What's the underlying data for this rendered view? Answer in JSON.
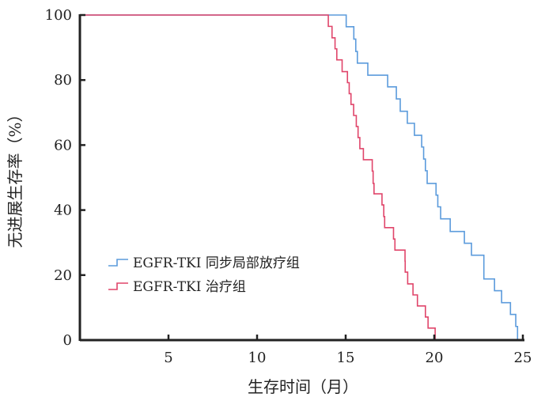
{
  "chart_data": {
    "type": "line",
    "subtype": "kaplan-meier-step",
    "xlabel": "生存时间（月）",
    "ylabel": "无进展生存率（%）",
    "xlim": [
      0,
      25
    ],
    "ylim": [
      0,
      100
    ],
    "xticks": [
      5,
      10,
      15,
      20,
      25
    ],
    "yticks": [
      0,
      20,
      40,
      60,
      80,
      100
    ],
    "grid": false,
    "legend_position": "bottom-left",
    "series": [
      {
        "name": "EGFR-TKI 同步局部放疗组",
        "color": "#5b9bdc",
        "points": [
          [
            0,
            100
          ],
          [
            15.03,
            96.4
          ],
          [
            15.46,
            92.6
          ],
          [
            15.57,
            88.8
          ],
          [
            15.66,
            85.2
          ],
          [
            16.25,
            81.5
          ],
          [
            17.37,
            77.9
          ],
          [
            17.86,
            74.2
          ],
          [
            18.08,
            70.4
          ],
          [
            18.48,
            66.7
          ],
          [
            18.88,
            63.0
          ],
          [
            19.29,
            59.4
          ],
          [
            19.4,
            55.7
          ],
          [
            19.5,
            52.1
          ],
          [
            19.6,
            48.2
          ],
          [
            20.1,
            44.6
          ],
          [
            20.2,
            41.0
          ],
          [
            20.36,
            37.3
          ],
          [
            20.9,
            33.4
          ],
          [
            21.7,
            29.8
          ],
          [
            22.1,
            26.1
          ],
          [
            22.8,
            18.8
          ],
          [
            23.4,
            15.2
          ],
          [
            23.8,
            11.5
          ],
          [
            24.3,
            7.9
          ],
          [
            24.6,
            4.2
          ],
          [
            24.7,
            0
          ]
        ]
      },
      {
        "name": "EGFR-TKI 治疗组",
        "color": "#e0456a",
        "points": [
          [
            0,
            100
          ],
          [
            14.02,
            96.5
          ],
          [
            14.23,
            93.0
          ],
          [
            14.4,
            89.6
          ],
          [
            14.5,
            86.2
          ],
          [
            14.8,
            82.6
          ],
          [
            15.1,
            79.2
          ],
          [
            15.2,
            75.8
          ],
          [
            15.3,
            72.5
          ],
          [
            15.45,
            69.1
          ],
          [
            15.6,
            65.7
          ],
          [
            15.7,
            62.3
          ],
          [
            15.8,
            58.9
          ],
          [
            16.0,
            55.5
          ],
          [
            16.5,
            52.0
          ],
          [
            16.55,
            48.2
          ],
          [
            16.6,
            45.0
          ],
          [
            17.05,
            41.6
          ],
          [
            17.15,
            38.0
          ],
          [
            17.2,
            34.6
          ],
          [
            17.7,
            31.1
          ],
          [
            17.78,
            27.7
          ],
          [
            18.35,
            24.3
          ],
          [
            18.36,
            20.9
          ],
          [
            18.5,
            17.3
          ],
          [
            18.8,
            13.9
          ],
          [
            19.05,
            10.5
          ],
          [
            19.5,
            7.1
          ],
          [
            19.65,
            3.7
          ],
          [
            20.05,
            0
          ]
        ]
      }
    ]
  }
}
